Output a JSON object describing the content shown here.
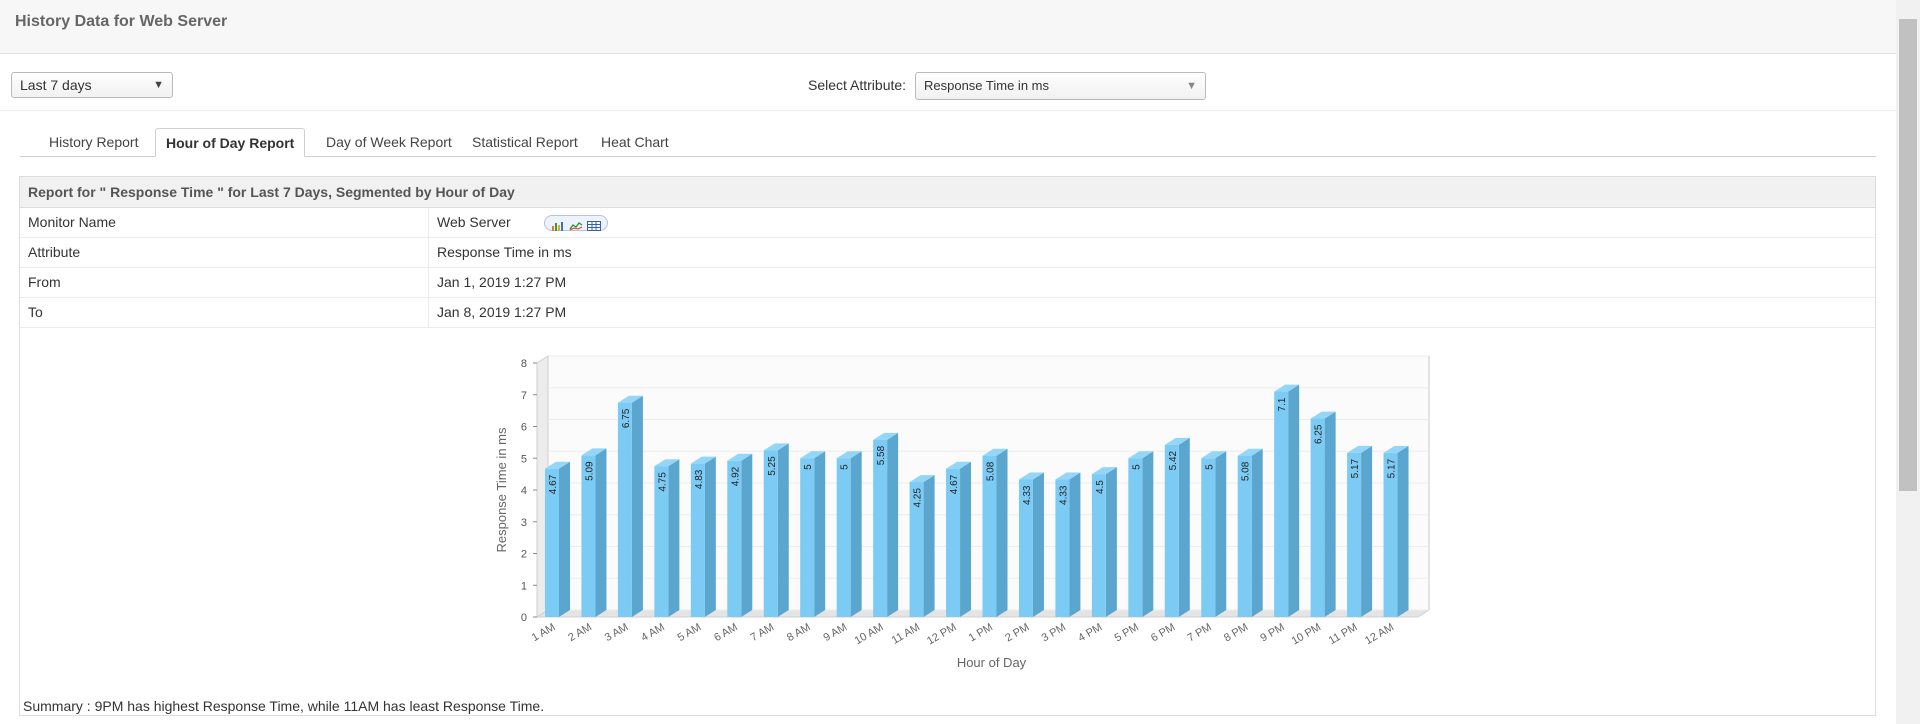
{
  "header": {
    "title": "History Data for Web Server"
  },
  "controls": {
    "period": "Last 7 days",
    "attribute_label": "Select Attribute:",
    "attribute_value": "Response Time in ms"
  },
  "tabs": [
    {
      "label": "History Report",
      "active": false
    },
    {
      "label": "Hour of Day Report",
      "active": true
    },
    {
      "label": "Day of Week Report",
      "active": false
    },
    {
      "label": "Statistical Report",
      "active": false
    },
    {
      "label": "Heat Chart",
      "active": false
    }
  ],
  "report": {
    "heading": "Report for \" Response Time \" for Last 7 Days, Segmented by Hour of Day",
    "rows": [
      {
        "label": "Monitor Name",
        "value": "Web Server"
      },
      {
        "label": "Attribute",
        "value": "Response Time in ms"
      },
      {
        "label": "From",
        "value": "Jan 1, 2019 1:27 PM"
      },
      {
        "label": "To",
        "value": "Jan 8, 2019 1:27 PM"
      }
    ],
    "summary": "Summary : 9PM has highest Response Time, while 11AM has least Response Time."
  },
  "colors": {
    "bar_front": "#7ccbf5",
    "bar_side": "#5aa6cf",
    "bar_top": "#93d6f8"
  },
  "chart_data": {
    "type": "bar",
    "categories": [
      "1 AM",
      "2 AM",
      "3 AM",
      "4 AM",
      "5 AM",
      "6 AM",
      "7 AM",
      "8 AM",
      "9 AM",
      "10 AM",
      "11 AM",
      "12 PM",
      "1 PM",
      "2 PM",
      "3 PM",
      "4 PM",
      "5 PM",
      "6 PM",
      "7 PM",
      "8 PM",
      "9 PM",
      "10 PM",
      "11 PM",
      "12 AM"
    ],
    "values": [
      4.67,
      5.09,
      6.75,
      4.75,
      4.83,
      4.92,
      5.25,
      5,
      5,
      5.58,
      4.25,
      4.67,
      5.08,
      4.33,
      4.33,
      4.5,
      5,
      5.42,
      5,
      5.08,
      7.1,
      6.25,
      5.17,
      5.17
    ],
    "labels": [
      "4.67",
      "5.09",
      "6.75",
      "4.75",
      "4.83",
      "4.92",
      "5.25",
      "5",
      "5",
      "5.58",
      "4.25",
      "4.67",
      "5.08",
      "4.33",
      "4.33",
      "4.5",
      "5",
      "5.42",
      "5",
      "5.08",
      "7.1",
      "6.25",
      "5.17",
      "5.17"
    ],
    "yticks": [
      "0",
      "1",
      "2",
      "3",
      "4",
      "5",
      "6",
      "7",
      "8"
    ],
    "xlabel": "Hour of Day",
    "ylabel": "Response Time in ms",
    "ylim": [
      0,
      8
    ]
  }
}
